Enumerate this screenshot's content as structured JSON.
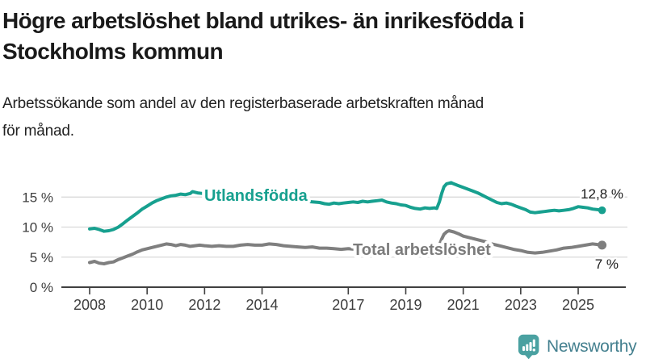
{
  "header": {
    "title_lines": [
      "Högre arbetslöshet bland utrikes- än inrikesfödda i",
      "Stockholms kommun"
    ],
    "subtitle_lines": [
      "Arbetssökande som andel av den registerbaserade arbetskraften månad",
      "för månad."
    ]
  },
  "chart_data": {
    "type": "line",
    "title": "Högre arbetslöshet bland utrikes- än inrikesfödda i Stockholms kommun",
    "subtitle": "Arbetssökande som andel av den registerbaserade arbetskraften månad för månad.",
    "x_unit": "year (decimal = month position)",
    "y_unit": "percent of registered labour force",
    "xlim": [
      2008,
      2026
    ],
    "ylim": [
      0,
      18
    ],
    "grid": "horizontal",
    "legend_position": "inline-labels",
    "yticks": [
      {
        "value": 0,
        "label": "0 %"
      },
      {
        "value": 5,
        "label": "5 %"
      },
      {
        "value": 10,
        "label": "10 %"
      },
      {
        "value": 15,
        "label": "15 %"
      }
    ],
    "xticks": [
      {
        "value": 2008,
        "label": "2008"
      },
      {
        "value": 2010,
        "label": "2010"
      },
      {
        "value": 2012,
        "label": "2012"
      },
      {
        "value": 2014,
        "label": "2014"
      },
      {
        "value": 2017,
        "label": "2017"
      },
      {
        "value": 2019,
        "label": "2019"
      },
      {
        "value": 2021,
        "label": "2021"
      },
      {
        "value": 2023,
        "label": "2023"
      },
      {
        "value": 2025,
        "label": "2025"
      }
    ],
    "series": [
      {
        "name": "Utlandsfödda",
        "color": "#17a08f",
        "end_label": "12,8 %",
        "end_value": 12.8,
        "points": [
          [
            2008.0,
            9.7
          ],
          [
            2008.17,
            9.8
          ],
          [
            2008.33,
            9.6
          ],
          [
            2008.5,
            9.3
          ],
          [
            2008.67,
            9.4
          ],
          [
            2008.83,
            9.6
          ],
          [
            2009.0,
            10.0
          ],
          [
            2009.17,
            10.6
          ],
          [
            2009.33,
            11.2
          ],
          [
            2009.5,
            11.8
          ],
          [
            2009.67,
            12.4
          ],
          [
            2009.83,
            13.0
          ],
          [
            2010.0,
            13.5
          ],
          [
            2010.17,
            14.0
          ],
          [
            2010.33,
            14.4
          ],
          [
            2010.5,
            14.7
          ],
          [
            2010.67,
            15.0
          ],
          [
            2010.83,
            15.2
          ],
          [
            2011.0,
            15.3
          ],
          [
            2011.17,
            15.5
          ],
          [
            2011.33,
            15.4
          ],
          [
            2011.5,
            15.6
          ],
          [
            2011.58,
            15.9
          ],
          [
            2011.75,
            15.7
          ],
          [
            2011.92,
            15.6
          ],
          [
            2012.08,
            15.8
          ],
          [
            2012.25,
            15.8
          ],
          [
            2012.5,
            15.6
          ],
          [
            2012.75,
            15.5
          ],
          [
            2013.0,
            15.4
          ],
          [
            2013.25,
            15.3
          ],
          [
            2013.5,
            15.2
          ],
          [
            2013.75,
            15.1
          ],
          [
            2014.0,
            15.0
          ],
          [
            2014.25,
            14.9
          ],
          [
            2014.5,
            14.7
          ],
          [
            2014.75,
            14.6
          ],
          [
            2015.0,
            14.5
          ],
          [
            2015.25,
            14.4
          ],
          [
            2015.5,
            14.3
          ],
          [
            2015.75,
            14.2
          ],
          [
            2016.0,
            14.1
          ],
          [
            2016.17,
            13.9
          ],
          [
            2016.33,
            13.8
          ],
          [
            2016.5,
            14.0
          ],
          [
            2016.67,
            13.9
          ],
          [
            2016.83,
            14.0
          ],
          [
            2017.0,
            14.1
          ],
          [
            2017.17,
            14.2
          ],
          [
            2017.33,
            14.1
          ],
          [
            2017.5,
            14.3
          ],
          [
            2017.67,
            14.2
          ],
          [
            2017.83,
            14.3
          ],
          [
            2018.0,
            14.4
          ],
          [
            2018.17,
            14.5
          ],
          [
            2018.33,
            14.2
          ],
          [
            2018.5,
            14.0
          ],
          [
            2018.67,
            13.9
          ],
          [
            2018.83,
            13.7
          ],
          [
            2019.0,
            13.6
          ],
          [
            2019.17,
            13.3
          ],
          [
            2019.33,
            13.1
          ],
          [
            2019.5,
            13.0
          ],
          [
            2019.67,
            13.2
          ],
          [
            2019.83,
            13.1
          ],
          [
            2020.0,
            13.2
          ],
          [
            2020.08,
            13.1
          ],
          [
            2020.17,
            14.2
          ],
          [
            2020.25,
            15.6
          ],
          [
            2020.33,
            16.7
          ],
          [
            2020.42,
            17.2
          ],
          [
            2020.5,
            17.3
          ],
          [
            2020.58,
            17.4
          ],
          [
            2020.67,
            17.2
          ],
          [
            2020.83,
            16.9
          ],
          [
            2021.0,
            16.6
          ],
          [
            2021.17,
            16.3
          ],
          [
            2021.33,
            16.0
          ],
          [
            2021.5,
            15.7
          ],
          [
            2021.67,
            15.3
          ],
          [
            2021.83,
            14.9
          ],
          [
            2022.0,
            14.5
          ],
          [
            2022.17,
            14.1
          ],
          [
            2022.33,
            13.9
          ],
          [
            2022.5,
            14.0
          ],
          [
            2022.67,
            13.8
          ],
          [
            2022.83,
            13.5
          ],
          [
            2023.0,
            13.2
          ],
          [
            2023.17,
            12.9
          ],
          [
            2023.33,
            12.5
          ],
          [
            2023.5,
            12.4
          ],
          [
            2023.67,
            12.5
          ],
          [
            2023.83,
            12.6
          ],
          [
            2024.0,
            12.7
          ],
          [
            2024.17,
            12.8
          ],
          [
            2024.33,
            12.7
          ],
          [
            2024.5,
            12.8
          ],
          [
            2024.67,
            12.9
          ],
          [
            2024.83,
            13.1
          ],
          [
            2025.0,
            13.4
          ],
          [
            2025.17,
            13.3
          ],
          [
            2025.33,
            13.2
          ],
          [
            2025.5,
            13.0
          ],
          [
            2025.67,
            12.9
          ],
          [
            2025.83,
            12.8
          ]
        ]
      },
      {
        "name": "Total arbetslöshet",
        "color": "#7f7f7f",
        "end_label": "7 %",
        "end_value": 7.0,
        "points": [
          [
            2008.0,
            4.1
          ],
          [
            2008.17,
            4.3
          ],
          [
            2008.33,
            4.0
          ],
          [
            2008.5,
            3.9
          ],
          [
            2008.67,
            4.1
          ],
          [
            2008.83,
            4.2
          ],
          [
            2009.0,
            4.6
          ],
          [
            2009.17,
            4.9
          ],
          [
            2009.33,
            5.2
          ],
          [
            2009.5,
            5.5
          ],
          [
            2009.67,
            5.9
          ],
          [
            2009.83,
            6.2
          ],
          [
            2010.0,
            6.4
          ],
          [
            2010.17,
            6.6
          ],
          [
            2010.33,
            6.8
          ],
          [
            2010.5,
            7.0
          ],
          [
            2010.67,
            7.2
          ],
          [
            2010.83,
            7.1
          ],
          [
            2011.0,
            6.9
          ],
          [
            2011.17,
            7.1
          ],
          [
            2011.33,
            7.0
          ],
          [
            2011.5,
            6.8
          ],
          [
            2011.67,
            6.9
          ],
          [
            2011.83,
            7.0
          ],
          [
            2012.0,
            6.9
          ],
          [
            2012.25,
            6.8
          ],
          [
            2012.5,
            6.9
          ],
          [
            2012.75,
            6.8
          ],
          [
            2013.0,
            6.8
          ],
          [
            2013.25,
            7.0
          ],
          [
            2013.5,
            7.1
          ],
          [
            2013.75,
            7.0
          ],
          [
            2014.0,
            7.0
          ],
          [
            2014.25,
            7.2
          ],
          [
            2014.5,
            7.1
          ],
          [
            2014.75,
            6.9
          ],
          [
            2015.0,
            6.8
          ],
          [
            2015.25,
            6.7
          ],
          [
            2015.5,
            6.6
          ],
          [
            2015.75,
            6.7
          ],
          [
            2016.0,
            6.5
          ],
          [
            2016.25,
            6.5
          ],
          [
            2016.5,
            6.4
          ],
          [
            2016.75,
            6.3
          ],
          [
            2017.0,
            6.4
          ],
          [
            2017.25,
            6.3
          ],
          [
            2017.5,
            6.3
          ],
          [
            2017.75,
            6.2
          ],
          [
            2018.0,
            6.1
          ],
          [
            2018.25,
            6.0
          ],
          [
            2018.5,
            6.0
          ],
          [
            2018.75,
            5.9
          ],
          [
            2019.0,
            5.9
          ],
          [
            2019.25,
            5.9
          ],
          [
            2019.5,
            6.0
          ],
          [
            2019.75,
            6.1
          ],
          [
            2020.0,
            6.3
          ],
          [
            2020.17,
            7.0
          ],
          [
            2020.25,
            8.0
          ],
          [
            2020.33,
            8.8
          ],
          [
            2020.42,
            9.2
          ],
          [
            2020.5,
            9.4
          ],
          [
            2020.67,
            9.2
          ],
          [
            2020.83,
            8.9
          ],
          [
            2021.0,
            8.5
          ],
          [
            2021.25,
            8.2
          ],
          [
            2021.5,
            7.9
          ],
          [
            2021.75,
            7.6
          ],
          [
            2022.0,
            7.2
          ],
          [
            2022.25,
            6.9
          ],
          [
            2022.5,
            6.6
          ],
          [
            2022.75,
            6.3
          ],
          [
            2023.0,
            6.1
          ],
          [
            2023.25,
            5.8
          ],
          [
            2023.5,
            5.7
          ],
          [
            2023.75,
            5.8
          ],
          [
            2024.0,
            6.0
          ],
          [
            2024.25,
            6.2
          ],
          [
            2024.5,
            6.5
          ],
          [
            2024.75,
            6.6
          ],
          [
            2025.0,
            6.8
          ],
          [
            2025.25,
            7.0
          ],
          [
            2025.5,
            7.2
          ],
          [
            2025.67,
            7.1
          ],
          [
            2025.83,
            7.0
          ]
        ]
      }
    ]
  },
  "branding": {
    "logo_text": "Newsworthy",
    "icon_color": "#4aa1a1",
    "text_color": "#44808f"
  },
  "colors": {
    "foreign_born_line": "#17a08f",
    "total_line": "#7f7f7f",
    "gridline": "#d9d9d9",
    "axis": "#3f3f3f",
    "title_text": "#1a1a1a"
  }
}
